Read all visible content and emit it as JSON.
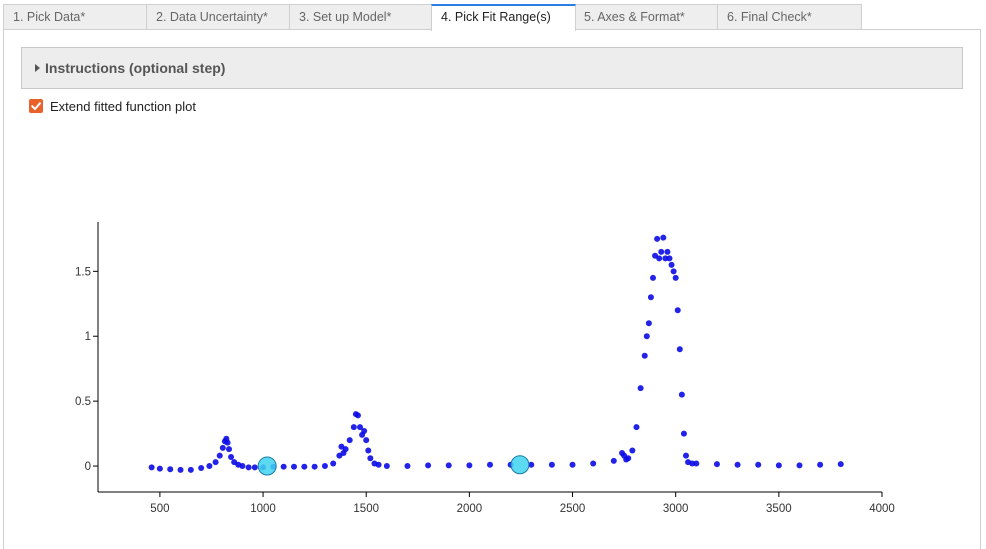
{
  "tabs": [
    {
      "label": "1. Pick Data*"
    },
    {
      "label": "2. Data Uncertainty*"
    },
    {
      "label": "3. Set up Model*"
    },
    {
      "label": "4. Pick Fit Range(s)",
      "active": true
    },
    {
      "label": "5. Axes & Format*"
    },
    {
      "label": "6. Final Check*"
    }
  ],
  "instructions": {
    "label": "Instructions (optional step)"
  },
  "extend_checkbox": {
    "label": "Extend fitted function plot",
    "checked": true
  },
  "colors": {
    "points": "#0a0ae6",
    "handle": "#3fd3ee",
    "checkbox": "#e8622a",
    "active_tab_border": "#2a7ee8"
  },
  "chart_data": {
    "type": "scatter",
    "title": "",
    "xlabel": "",
    "ylabel": "",
    "xlim": [
      200,
      4000
    ],
    "ylim": [
      -0.2,
      1.88
    ],
    "xticks": [
      500,
      1000,
      1500,
      2000,
      2500,
      3000,
      3500,
      4000
    ],
    "xtick_labels": [
      "500",
      "1000",
      "1500",
      "2000",
      "2500",
      "3000",
      "3500",
      "4000"
    ],
    "yticks": [
      0,
      0.5,
      1,
      1.5
    ],
    "ytick_labels": [
      "0",
      "0.5",
      "1",
      "1.5"
    ],
    "fit_range_handles": [
      {
        "x": 1020,
        "y": 0.0
      },
      {
        "x": 2245,
        "y": 0.01
      }
    ],
    "series": [
      {
        "x": [
          460,
          500,
          550,
          600,
          650,
          700,
          740,
          770,
          790,
          805,
          815,
          822,
          828,
          835,
          845,
          860,
          880,
          900,
          930,
          960,
          1000,
          1050,
          1100,
          1150,
          1200,
          1250,
          1300,
          1340,
          1370,
          1380,
          1390,
          1400,
          1420,
          1440,
          1450,
          1460,
          1470,
          1480,
          1490,
          1500,
          1510,
          1520,
          1540,
          1560,
          1600,
          1700,
          1800,
          1900,
          2000,
          2100,
          2200,
          2300,
          2400,
          2500,
          2600,
          2700,
          2740,
          2750,
          2760,
          2770,
          2790,
          2810,
          2830,
          2850,
          2860,
          2870,
          2880,
          2890,
          2900,
          2910,
          2920,
          2930,
          2940,
          2950,
          2960,
          2970,
          2980,
          2990,
          3000,
          3010,
          3020,
          3030,
          3040,
          3050,
          3060,
          3080,
          3100,
          3200,
          3300,
          3400,
          3500,
          3600,
          3700,
          3800
        ],
        "y": [
          -0.01,
          -0.02,
          -0.025,
          -0.03,
          -0.03,
          -0.015,
          0.0,
          0.03,
          0.08,
          0.14,
          0.19,
          0.21,
          0.18,
          0.13,
          0.07,
          0.03,
          0.01,
          0.0,
          -0.01,
          -0.01,
          -0.01,
          -0.005,
          -0.005,
          -0.005,
          -0.005,
          -0.005,
          0.0,
          0.02,
          0.08,
          0.15,
          0.1,
          0.13,
          0.2,
          0.3,
          0.4,
          0.39,
          0.3,
          0.24,
          0.27,
          0.2,
          0.12,
          0.06,
          0.02,
          0.01,
          0.0,
          0.0,
          0.005,
          0.005,
          0.005,
          0.01,
          0.01,
          0.01,
          0.01,
          0.01,
          0.02,
          0.04,
          0.1,
          0.08,
          0.05,
          0.06,
          0.12,
          0.3,
          0.6,
          0.85,
          1.0,
          1.1,
          1.3,
          1.45,
          1.62,
          1.75,
          1.6,
          1.65,
          1.76,
          1.6,
          1.65,
          1.6,
          1.55,
          1.5,
          1.45,
          1.2,
          0.9,
          0.55,
          0.25,
          0.08,
          0.03,
          0.02,
          0.02,
          0.015,
          0.01,
          0.01,
          0.005,
          0.005,
          0.01,
          0.015
        ]
      }
    ]
  }
}
